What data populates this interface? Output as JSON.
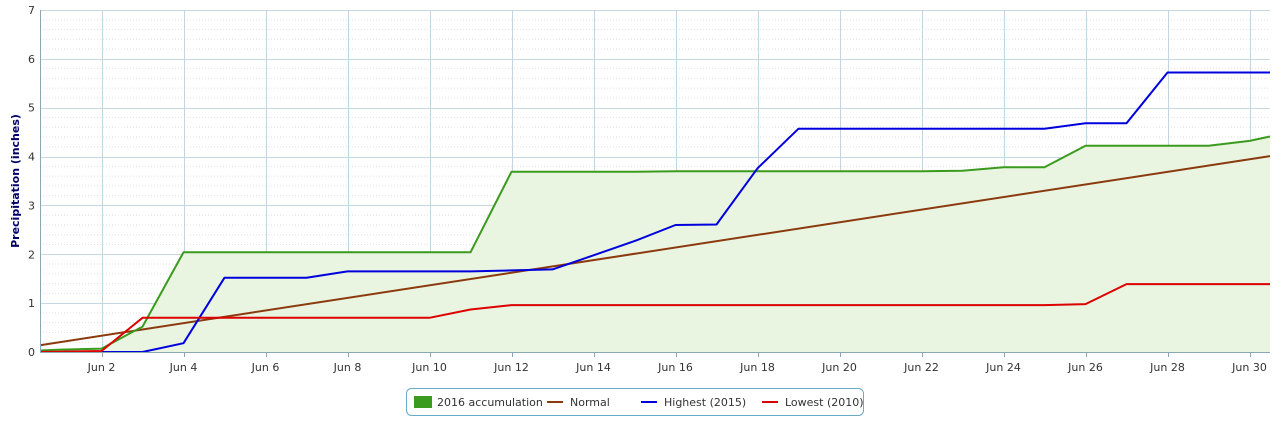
{
  "chart_data": {
    "type": "line",
    "title": "",
    "xlabel": "",
    "ylabel": "Precipitation (inches)",
    "xlim": [
      0.5,
      30.5
    ],
    "ylim": [
      0,
      7
    ],
    "y_ticks": [
      0,
      1,
      2,
      3,
      4,
      5,
      6,
      7
    ],
    "x_ticks": [
      {
        "x": 2,
        "label": "Jun 2"
      },
      {
        "x": 4,
        "label": "Jun 4"
      },
      {
        "x": 6,
        "label": "Jun 6"
      },
      {
        "x": 8,
        "label": "Jun 8"
      },
      {
        "x": 10,
        "label": "Jun 10"
      },
      {
        "x": 12,
        "label": "Jun 12"
      },
      {
        "x": 14,
        "label": "Jun 14"
      },
      {
        "x": 16,
        "label": "Jun 16"
      },
      {
        "x": 18,
        "label": "Jun 18"
      },
      {
        "x": 20,
        "label": "Jun 20"
      },
      {
        "x": 22,
        "label": "Jun 22"
      },
      {
        "x": 24,
        "label": "Jun 24"
      },
      {
        "x": 26,
        "label": "Jun 26"
      },
      {
        "x": 28,
        "label": "Jun 28"
      },
      {
        "x": 30,
        "label": "Jun 30"
      }
    ],
    "grid": true,
    "legend_position": "bottom-center",
    "series": [
      {
        "name": "2016 accumulation",
        "style": "area",
        "color": "#3a9b1e",
        "fill": "#e9f4e1",
        "points": [
          [
            0.5,
            0.03
          ],
          [
            1,
            0.05
          ],
          [
            2,
            0.07
          ],
          [
            3,
            0.52
          ],
          [
            4,
            2.04
          ],
          [
            5,
            2.04
          ],
          [
            6,
            2.04
          ],
          [
            7,
            2.04
          ],
          [
            8,
            2.04
          ],
          [
            9,
            2.04
          ],
          [
            10,
            2.04
          ],
          [
            11,
            2.04
          ],
          [
            12,
            3.69
          ],
          [
            13,
            3.69
          ],
          [
            14,
            3.69
          ],
          [
            15,
            3.69
          ],
          [
            16,
            3.7
          ],
          [
            17,
            3.7
          ],
          [
            18,
            3.7
          ],
          [
            19,
            3.7
          ],
          [
            20,
            3.7
          ],
          [
            21,
            3.7
          ],
          [
            22,
            3.7
          ],
          [
            23,
            3.71
          ],
          [
            24,
            3.78
          ],
          [
            25,
            3.78
          ],
          [
            26,
            4.22
          ],
          [
            27,
            4.22
          ],
          [
            28,
            4.22
          ],
          [
            29,
            4.22
          ],
          [
            30,
            4.32
          ],
          [
            30.5,
            4.41
          ]
        ]
      },
      {
        "name": "Normal",
        "style": "line",
        "color": "#8b3a0e",
        "points": [
          [
            0.5,
            0.14
          ],
          [
            30.5,
            4.01
          ]
        ]
      },
      {
        "name": "Highest (2015)",
        "style": "line",
        "color": "#0000dd",
        "points": [
          [
            0.5,
            0
          ],
          [
            3,
            0
          ],
          [
            4,
            0.18
          ],
          [
            5,
            1.52
          ],
          [
            6,
            1.52
          ],
          [
            7,
            1.52
          ],
          [
            8,
            1.65
          ],
          [
            9,
            1.65
          ],
          [
            10,
            1.65
          ],
          [
            11,
            1.65
          ],
          [
            12,
            1.67
          ],
          [
            13,
            1.69
          ],
          [
            14,
            1.98
          ],
          [
            15,
            2.27
          ],
          [
            16,
            2.6
          ],
          [
            17,
            2.61
          ],
          [
            18,
            3.76
          ],
          [
            19,
            4.57
          ],
          [
            20,
            4.57
          ],
          [
            21,
            4.57
          ],
          [
            22,
            4.57
          ],
          [
            23,
            4.57
          ],
          [
            24,
            4.57
          ],
          [
            25,
            4.57
          ],
          [
            26,
            4.68
          ],
          [
            27,
            4.68
          ],
          [
            28,
            5.72
          ],
          [
            29,
            5.72
          ],
          [
            30,
            5.72
          ],
          [
            30.5,
            5.72
          ]
        ]
      },
      {
        "name": "Lowest (2010)",
        "style": "line",
        "color": "#dd0000",
        "points": [
          [
            0.5,
            0
          ],
          [
            2,
            0.02
          ],
          [
            3,
            0.7
          ],
          [
            4,
            0.7
          ],
          [
            5,
            0.7
          ],
          [
            6,
            0.7
          ],
          [
            7,
            0.7
          ],
          [
            8,
            0.7
          ],
          [
            9,
            0.7
          ],
          [
            10,
            0.7
          ],
          [
            11,
            0.87
          ],
          [
            12,
            0.96
          ],
          [
            13,
            0.96
          ],
          [
            14,
            0.96
          ],
          [
            15,
            0.96
          ],
          [
            16,
            0.96
          ],
          [
            17,
            0.96
          ],
          [
            18,
            0.96
          ],
          [
            19,
            0.96
          ],
          [
            20,
            0.96
          ],
          [
            21,
            0.96
          ],
          [
            22,
            0.96
          ],
          [
            23,
            0.96
          ],
          [
            24,
            0.96
          ],
          [
            25,
            0.96
          ],
          [
            26,
            0.98
          ],
          [
            27,
            1.39
          ],
          [
            28,
            1.39
          ],
          [
            29,
            1.39
          ],
          [
            30,
            1.39
          ],
          [
            30.5,
            1.39
          ]
        ]
      }
    ]
  }
}
